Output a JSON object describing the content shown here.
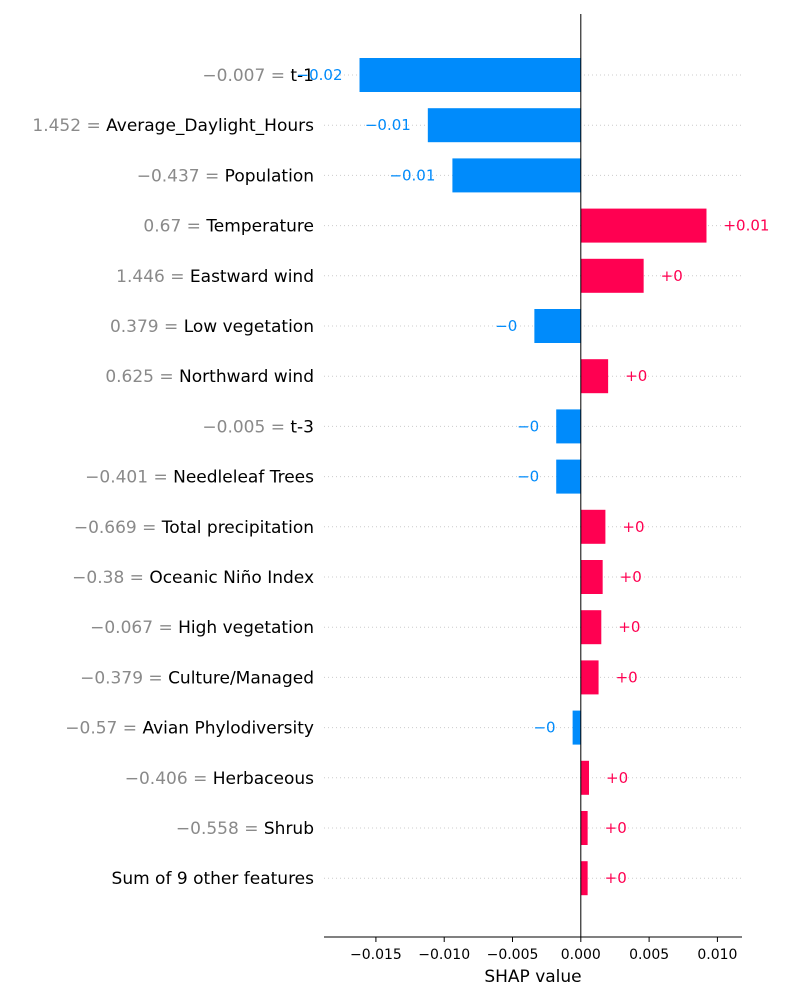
{
  "chart_data": {
    "type": "bar",
    "orientation": "horizontal",
    "xlabel": "SHAP value",
    "xlim": [
      -0.0188,
      0.0118
    ],
    "xticks": [
      -0.015,
      -0.01,
      -0.005,
      0.0,
      0.005,
      0.01
    ],
    "xtick_labels": [
      "−0.015",
      "−0.010",
      "−0.005",
      "0.000",
      "0.005",
      "0.010"
    ],
    "colors": {
      "positive": "#ff0051",
      "negative": "#008bfb",
      "feature_value": "#8a8a8a",
      "feature_name": "#000000"
    },
    "grid": "dotted horizontal row guides",
    "features": [
      {
        "feature_value": "−0.007 = ",
        "name": "t-1",
        "shap": -0.0162,
        "label": "−0.02"
      },
      {
        "feature_value": "1.452 = ",
        "name": "Average_Daylight_Hours",
        "shap": -0.0112,
        "label": "−0.01"
      },
      {
        "feature_value": "−0.437 = ",
        "name": "Population",
        "shap": -0.0094,
        "label": "−0.01"
      },
      {
        "feature_value": "0.67 = ",
        "name": "Temperature",
        "shap": 0.0092,
        "label": "+0.01"
      },
      {
        "feature_value": "1.446 = ",
        "name": "Eastward wind",
        "shap": 0.0046,
        "label": "+0"
      },
      {
        "feature_value": "0.379 = ",
        "name": "Low vegetation",
        "shap": -0.0034,
        "label": "−0"
      },
      {
        "feature_value": "0.625 = ",
        "name": "Northward wind",
        "shap": 0.002,
        "label": "+0"
      },
      {
        "feature_value": "−0.005 = ",
        "name": "t-3",
        "shap": -0.0018,
        "label": "−0"
      },
      {
        "feature_value": "−0.401 = ",
        "name": "Needleleaf Trees",
        "shap": -0.0018,
        "label": "−0"
      },
      {
        "feature_value": "−0.669 = ",
        "name": "Total precipitation",
        "shap": 0.0018,
        "label": "+0"
      },
      {
        "feature_value": "−0.38 = ",
        "name": "Oceanic Niño Index",
        "shap": 0.0016,
        "label": "+0"
      },
      {
        "feature_value": "−0.067 = ",
        "name": "High vegetation",
        "shap": 0.0015,
        "label": "+0"
      },
      {
        "feature_value": "−0.379 = ",
        "name": "Culture/Managed",
        "shap": 0.0013,
        "label": "+0"
      },
      {
        "feature_value": "−0.57 = ",
        "name": "Avian Phylodiversity",
        "shap": -0.0006,
        "label": "−0"
      },
      {
        "feature_value": "−0.406 = ",
        "name": "Herbaceous",
        "shap": 0.0006,
        "label": "+0"
      },
      {
        "feature_value": "−0.558 = ",
        "name": "Shrub",
        "shap": 0.0005,
        "label": "+0"
      },
      {
        "feature_value": "",
        "name": "Sum of 9 other features",
        "shap": 0.0005,
        "label": "+0"
      }
    ]
  }
}
